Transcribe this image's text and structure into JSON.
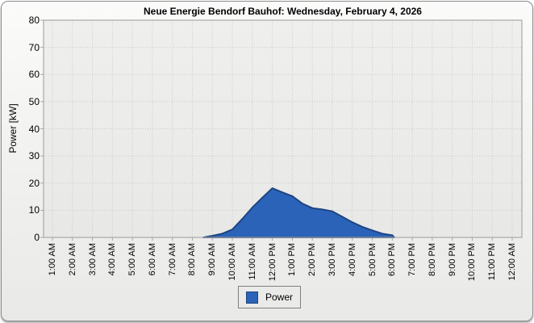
{
  "window": {
    "title": "Neue Energie Bendorf Bauhof: Wednesday, February 4, 2026"
  },
  "chart_data": {
    "type": "area",
    "title": "Neue Energie Bendorf Bauhof: Wednesday, February 4, 2026",
    "xlabel": "",
    "ylabel": "Power [kW]",
    "ylim": [
      0,
      80
    ],
    "yticks": [
      0,
      10,
      20,
      30,
      40,
      50,
      60,
      70,
      80
    ],
    "x_tick_hours": [
      1,
      2,
      3,
      4,
      5,
      6,
      7,
      8,
      9,
      10,
      11,
      12,
      13,
      14,
      15,
      16,
      17,
      18,
      19,
      20,
      21,
      22,
      23,
      24
    ],
    "x_tick_labels": [
      "1:00 AM",
      "2:00 AM",
      "3:00 AM",
      "4:00 AM",
      "5:00 AM",
      "6:00 AM",
      "7:00 AM",
      "8:00 AM",
      "9:00 AM",
      "10:00 AM",
      "11:00 AM",
      "12:00 PM",
      "1:00 PM",
      "2:00 PM",
      "3:00 PM",
      "4:00 PM",
      "5:00 PM",
      "6:00 PM",
      "7:00 PM",
      "8:00 PM",
      "9:00 PM",
      "10:00 PM",
      "11:00 PM",
      "12:00 AM"
    ],
    "grid": "dotted",
    "legend_position": "bottom-center",
    "series": [
      {
        "name": "Power",
        "unit": "kW",
        "fill_color": "#2a63b8",
        "edge_color": "#1e4583",
        "points_hour_kw": [
          [
            8.55,
            0
          ],
          [
            9.0,
            0.6
          ],
          [
            9.5,
            1.4
          ],
          [
            10.0,
            2.9
          ],
          [
            10.5,
            6.8
          ],
          [
            11.0,
            11.0
          ],
          [
            11.5,
            14.6
          ],
          [
            12.0,
            18.1
          ],
          [
            12.5,
            16.6
          ],
          [
            13.0,
            15.2
          ],
          [
            13.5,
            12.5
          ],
          [
            14.0,
            10.8
          ],
          [
            14.5,
            10.3
          ],
          [
            15.0,
            9.6
          ],
          [
            15.5,
            7.6
          ],
          [
            16.0,
            5.6
          ],
          [
            16.5,
            3.9
          ],
          [
            17.0,
            2.6
          ],
          [
            17.5,
            1.4
          ],
          [
            18.0,
            0.8
          ],
          [
            18.1,
            0
          ]
        ]
      }
    ]
  },
  "legend": {
    "items": [
      {
        "label": "Power",
        "color": "#2a63b8",
        "border_color": "#1e4583"
      }
    ]
  },
  "colors": {
    "window_border": "#8d8d8d",
    "plot_border": "#a9a9a9",
    "gridline": "#c9c9c9",
    "tick": "#a7a7a7",
    "plot_bg_top": "#efefed",
    "plot_bg_bottom": "#e8e8e6"
  }
}
